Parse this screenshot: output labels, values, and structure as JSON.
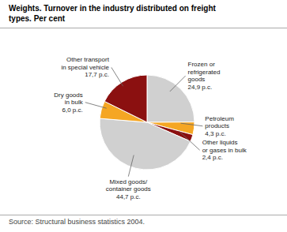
{
  "chart_data": {
    "type": "pie",
    "title": "Weights. Turnover in the industry distributed on freight\ntypes. Per cent",
    "categories": [
      "Frozen or\nrefrigerated\ngoods\n24,9 p.c.",
      "Petroleum\nproducts\n4,3 p.c.",
      "Other liquids\nor gases in bulk\n2,4 p.c.",
      "Mixed goods/\ncontainer goods\n44,7 p.c.",
      "Dry goods\nin bulk\n6,0 p.c.",
      "Other transport\nin special vehicle\n17,7 p.c."
    ],
    "values": [
      24.9,
      4.3,
      2.4,
      44.7,
      6.0,
      17.7
    ],
    "colors": [
      "#d0d0d0",
      "#f5a623",
      "#8b1010",
      "#d0d0d0",
      "#f5a623",
      "#8b1010"
    ],
    "annotations": [
      "Source: Structural business statistics 2004."
    ]
  }
}
